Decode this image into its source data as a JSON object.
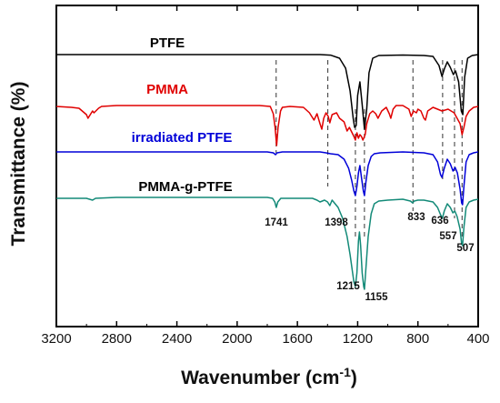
{
  "chart_data": {
    "type": "line",
    "title": "",
    "xlabel": "Wavenumber (cm",
    "xlabel_sup": "-1",
    "xlabel_close": ")",
    "ylabel": "Transmittance (%)",
    "xlim": [
      3200,
      400
    ],
    "x_reversed": true,
    "x_ticks": [
      3200,
      2800,
      2400,
      2000,
      1600,
      1200,
      800,
      400
    ],
    "y_ticks_shown": false,
    "grid": false,
    "legend": "inline labels above each curve",
    "series": [
      {
        "name": "PTFE",
        "color": "#000000",
        "baseline": 0.0,
        "points": [
          [
            3200,
            0.0
          ],
          [
            1450,
            0.0
          ],
          [
            1380,
            0.6
          ],
          [
            1320,
            4
          ],
          [
            1280,
            15
          ],
          [
            1250,
            40
          ],
          [
            1230,
            70
          ],
          [
            1220,
            80
          ],
          [
            1210,
            78
          ],
          [
            1200,
            45
          ],
          [
            1185,
            30
          ],
          [
            1170,
            55
          ],
          [
            1155,
            82
          ],
          [
            1140,
            60
          ],
          [
            1125,
            20
          ],
          [
            1100,
            4
          ],
          [
            1060,
            1
          ],
          [
            900,
            0.5
          ],
          [
            760,
            1
          ],
          [
            700,
            2
          ],
          [
            660,
            12
          ],
          [
            640,
            24
          ],
          [
            625,
            16
          ],
          [
            605,
            8
          ],
          [
            585,
            14
          ],
          [
            565,
            22
          ],
          [
            550,
            18
          ],
          [
            530,
            30
          ],
          [
            512,
            62
          ],
          [
            502,
            66
          ],
          [
            490,
            25
          ],
          [
            470,
            4
          ],
          [
            440,
            1
          ],
          [
            400,
            0
          ]
        ]
      },
      {
        "name": "PMMA",
        "color": "#e00000",
        "baseline": 56,
        "points": [
          [
            3200,
            57
          ],
          [
            3100,
            58
          ],
          [
            3050,
            59
          ],
          [
            3000,
            66
          ],
          [
            2990,
            70
          ],
          [
            2960,
            62
          ],
          [
            2950,
            64
          ],
          [
            2920,
            59
          ],
          [
            2900,
            57
          ],
          [
            2800,
            56
          ],
          [
            2000,
            56
          ],
          [
            1850,
            56
          ],
          [
            1780,
            57
          ],
          [
            1760,
            65
          ],
          [
            1748,
            80
          ],
          [
            1738,
            100
          ],
          [
            1728,
            80
          ],
          [
            1712,
            62
          ],
          [
            1700,
            58
          ],
          [
            1650,
            57
          ],
          [
            1560,
            58
          ],
          [
            1520,
            64
          ],
          [
            1490,
            72
          ],
          [
            1470,
            65
          ],
          [
            1450,
            76
          ],
          [
            1438,
            82
          ],
          [
            1425,
            70
          ],
          [
            1410,
            64
          ],
          [
            1395,
            68
          ],
          [
            1385,
            75
          ],
          [
            1370,
            66
          ],
          [
            1340,
            64
          ],
          [
            1320,
            70
          ],
          [
            1290,
            74
          ],
          [
            1270,
            84
          ],
          [
            1255,
            80
          ],
          [
            1240,
            85
          ],
          [
            1225,
            90
          ],
          [
            1215,
            94
          ],
          [
            1205,
            86
          ],
          [
            1195,
            92
          ],
          [
            1185,
            88
          ],
          [
            1175,
            90
          ],
          [
            1165,
            94
          ],
          [
            1150,
            88
          ],
          [
            1140,
            76
          ],
          [
            1120,
            65
          ],
          [
            1100,
            62
          ],
          [
            1080,
            65
          ],
          [
            1065,
            70
          ],
          [
            1040,
            62
          ],
          [
            1010,
            58
          ],
          [
            990,
            65
          ],
          [
            980,
            70
          ],
          [
            965,
            60
          ],
          [
            945,
            56
          ],
          [
            900,
            56
          ],
          [
            860,
            60
          ],
          [
            845,
            68
          ],
          [
            830,
            62
          ],
          [
            810,
            64
          ],
          [
            800,
            60
          ],
          [
            780,
            62
          ],
          [
            760,
            70
          ],
          [
            750,
            72
          ],
          [
            735,
            62
          ],
          [
            700,
            58
          ],
          [
            670,
            60
          ],
          [
            640,
            62
          ],
          [
            600,
            60
          ],
          [
            560,
            64
          ],
          [
            540,
            70
          ],
          [
            520,
            76
          ],
          [
            507,
            88
          ],
          [
            495,
            80
          ],
          [
            480,
            68
          ],
          [
            460,
            62
          ],
          [
            430,
            58
          ],
          [
            400,
            57
          ]
        ]
      },
      {
        "name": "irradiated PTFE",
        "color": "#0000d8",
        "baseline": 107,
        "points": [
          [
            3200,
            107
          ],
          [
            2000,
            107
          ],
          [
            1800,
            107
          ],
          [
            1760,
            108
          ],
          [
            1745,
            110
          ],
          [
            1735,
            108
          ],
          [
            1700,
            107
          ],
          [
            1450,
            107
          ],
          [
            1410,
            108
          ],
          [
            1380,
            109
          ],
          [
            1330,
            110
          ],
          [
            1290,
            115
          ],
          [
            1260,
            125
          ],
          [
            1240,
            138
          ],
          [
            1225,
            150
          ],
          [
            1215,
            155
          ],
          [
            1205,
            145
          ],
          [
            1195,
            130
          ],
          [
            1185,
            122
          ],
          [
            1175,
            135
          ],
          [
            1162,
            150
          ],
          [
            1155,
            155
          ],
          [
            1145,
            140
          ],
          [
            1130,
            122
          ],
          [
            1110,
            112
          ],
          [
            1090,
            109
          ],
          [
            1050,
            108
          ],
          [
            900,
            107
          ],
          [
            760,
            108
          ],
          [
            700,
            110
          ],
          [
            670,
            118
          ],
          [
            650,
            132
          ],
          [
            640,
            135
          ],
          [
            625,
            125
          ],
          [
            605,
            115
          ],
          [
            585,
            120
          ],
          [
            567,
            128
          ],
          [
            553,
            124
          ],
          [
            538,
            130
          ],
          [
            520,
            148
          ],
          [
            510,
            163
          ],
          [
            504,
            165
          ],
          [
            495,
            145
          ],
          [
            480,
            118
          ],
          [
            460,
            110
          ],
          [
            430,
            108
          ],
          [
            400,
            107
          ]
        ]
      },
      {
        "name": "PMMA-g-PTFE",
        "color": "#138a78",
        "baseline": 157,
        "points": [
          [
            3200,
            158
          ],
          [
            3000,
            158
          ],
          [
            2960,
            160
          ],
          [
            2940,
            158
          ],
          [
            2800,
            157
          ],
          [
            2000,
            157
          ],
          [
            1800,
            157
          ],
          [
            1765,
            158
          ],
          [
            1750,
            162
          ],
          [
            1740,
            168
          ],
          [
            1730,
            162
          ],
          [
            1710,
            158
          ],
          [
            1600,
            158
          ],
          [
            1500,
            158
          ],
          [
            1470,
            160
          ],
          [
            1450,
            162
          ],
          [
            1420,
            160
          ],
          [
            1400,
            162
          ],
          [
            1385,
            166
          ],
          [
            1370,
            160
          ],
          [
            1330,
            168
          ],
          [
            1300,
            180
          ],
          [
            1270,
            200
          ],
          [
            1250,
            220
          ],
          [
            1235,
            238
          ],
          [
            1225,
            250
          ],
          [
            1215,
            255
          ],
          [
            1205,
            240
          ],
          [
            1195,
            205
          ],
          [
            1188,
            195
          ],
          [
            1180,
            210
          ],
          [
            1170,
            240
          ],
          [
            1160,
            255
          ],
          [
            1155,
            258
          ],
          [
            1145,
            235
          ],
          [
            1130,
            200
          ],
          [
            1110,
            175
          ],
          [
            1090,
            164
          ],
          [
            1060,
            161
          ],
          [
            1000,
            160
          ],
          [
            900,
            159
          ],
          [
            850,
            161
          ],
          [
            835,
            163
          ],
          [
            825,
            161
          ],
          [
            800,
            160
          ],
          [
            760,
            160
          ],
          [
            700,
            162
          ],
          [
            670,
            168
          ],
          [
            650,
            176
          ],
          [
            638,
            180
          ],
          [
            625,
            172
          ],
          [
            605,
            164
          ],
          [
            585,
            168
          ],
          [
            568,
            174
          ],
          [
            555,
            172
          ],
          [
            540,
            178
          ],
          [
            520,
            192
          ],
          [
            510,
            208
          ],
          [
            504,
            210
          ],
          [
            495,
            190
          ],
          [
            480,
            168
          ],
          [
            460,
            162
          ],
          [
            430,
            160
          ],
          [
            400,
            159
          ]
        ]
      }
    ],
    "reference_lines_cm-1": [
      1741,
      1398,
      1215,
      1155,
      833,
      636,
      557,
      507
    ],
    "peak_labels": [
      "1741",
      "1398",
      "1215",
      "1155",
      "833",
      "636",
      "557",
      "507"
    ]
  }
}
